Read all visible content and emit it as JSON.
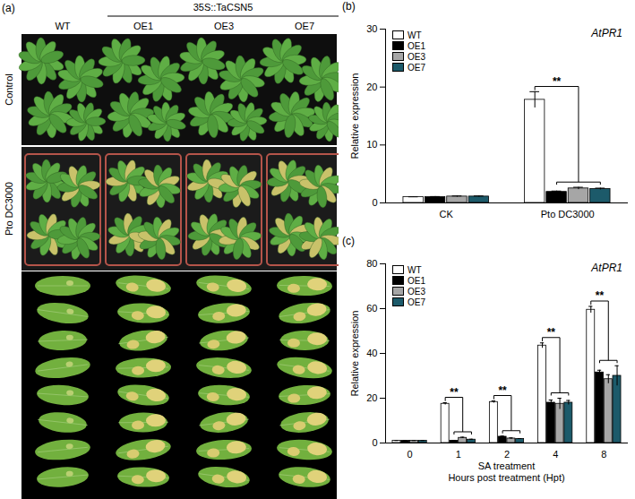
{
  "chart_data": [
    {
      "type": "photo_panel",
      "panel": "(a)",
      "group_label": "35S::TaCSN5",
      "columns": [
        "WT",
        "OE1",
        "OE3",
        "OE7"
      ],
      "rows": [
        "Control",
        "Pto DC3000"
      ]
    },
    {
      "type": "bar",
      "panel": "(b)",
      "title": "AtPR1",
      "y_label": "Relative expression",
      "categories": [
        "CK",
        "Pto DC3000"
      ],
      "series": [
        {
          "name": "WT",
          "color": "#ffffff",
          "values": [
            1.0,
            17.8
          ],
          "errors": [
            0.05,
            1.4
          ]
        },
        {
          "name": "OE1",
          "color": "#000000",
          "values": [
            1.0,
            1.9
          ],
          "errors": [
            0.1,
            0.15
          ]
        },
        {
          "name": "OE3",
          "color": "#a6a6a6",
          "values": [
            1.1,
            2.5
          ],
          "errors": [
            0.1,
            0.2
          ]
        },
        {
          "name": "OE7",
          "color": "#1c5a6a",
          "values": [
            1.1,
            2.4
          ],
          "errors": [
            0.1,
            0.15
          ]
        }
      ],
      "ylim": [
        0,
        30
      ],
      "yticks": [
        0,
        10,
        20,
        30
      ],
      "legend": "top-left",
      "significance": [
        {
          "category": "Pto DC3000",
          "label": "**"
        }
      ]
    },
    {
      "type": "bar",
      "panel": "(c)",
      "title": "AtPR1",
      "y_label": "Relative expression",
      "x_label": "SA treatment",
      "x_sublabel": "Hours post treatment (Hpt)",
      "categories": [
        "0",
        "1",
        "2",
        "4",
        "8"
      ],
      "series": [
        {
          "name": "WT",
          "color": "#ffffff",
          "values": [
            1.0,
            17.5,
            18.3,
            43.5,
            59.5
          ],
          "errors": [
            0.1,
            0.5,
            0.5,
            1.2,
            1.5
          ]
        },
        {
          "name": "OE1",
          "color": "#000000",
          "values": [
            1.0,
            1.0,
            2.8,
            18.0,
            31.5
          ],
          "errors": [
            0.1,
            0.2,
            0.3,
            1.2,
            1.0
          ]
        },
        {
          "name": "OE3",
          "color": "#a6a6a6",
          "values": [
            1.0,
            2.3,
            2.0,
            17.5,
            28.5
          ],
          "errors": [
            0.1,
            0.3,
            0.3,
            2.5,
            2.0
          ]
        },
        {
          "name": "OE7",
          "color": "#1c5a6a",
          "values": [
            1.0,
            1.5,
            1.8,
            18.0,
            30.0
          ],
          "errors": [
            0.1,
            0.2,
            0.2,
            1.0,
            4.5
          ]
        }
      ],
      "ylim": [
        0,
        80
      ],
      "yticks": [
        0,
        20,
        40,
        60,
        80
      ],
      "legend": "top-left",
      "significance": [
        {
          "category": "1",
          "label": "**"
        },
        {
          "category": "2",
          "label": "**"
        },
        {
          "category": "4",
          "label": "**"
        },
        {
          "category": "8",
          "label": "**"
        }
      ]
    }
  ]
}
